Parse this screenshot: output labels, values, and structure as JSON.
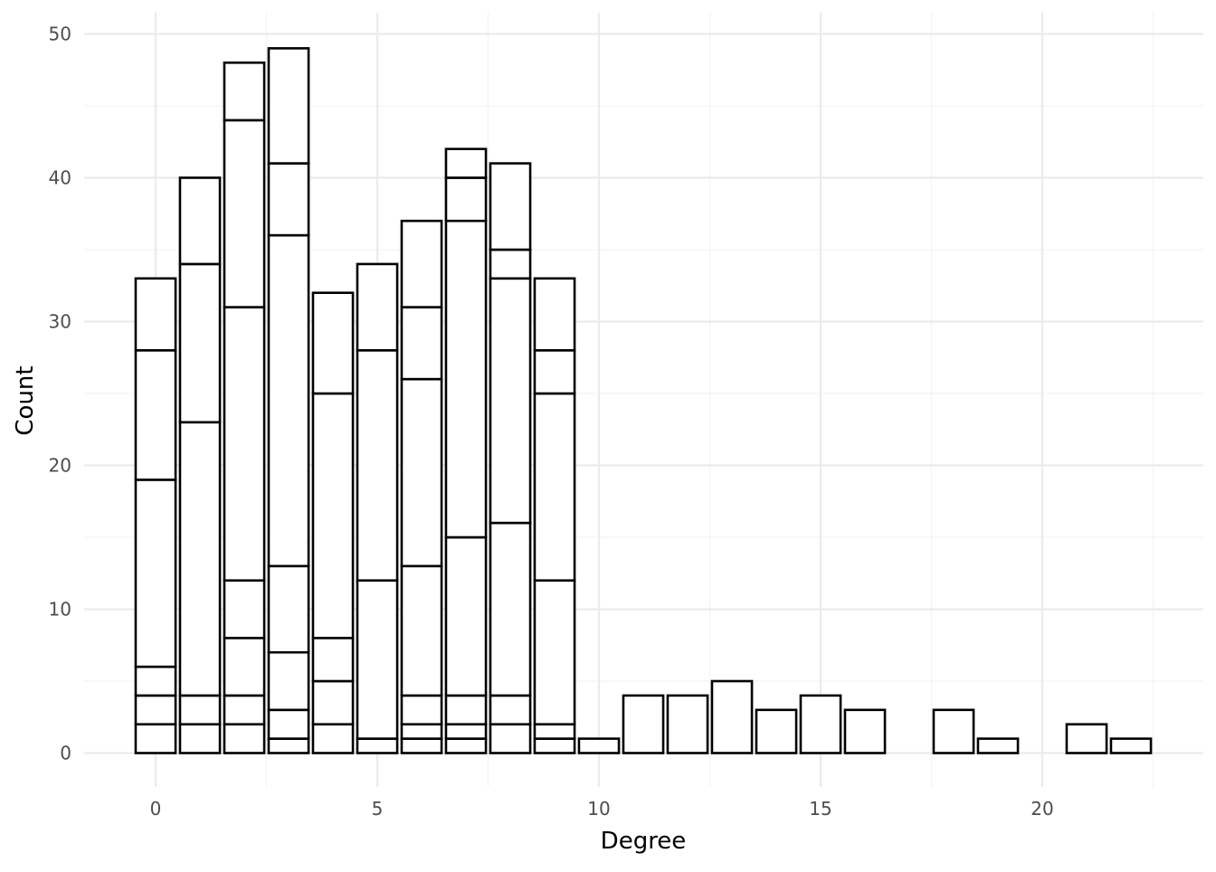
{
  "chart_data": {
    "type": "bar",
    "subtype": "stacked",
    "xlabel": "Degree",
    "ylabel": "Count",
    "xlim": [
      -1.5,
      23.5
    ],
    "ylim": [
      -2.5,
      51
    ],
    "x_ticks": [
      0,
      5,
      10,
      15,
      20
    ],
    "y_ticks": [
      0,
      10,
      20,
      30,
      40,
      50
    ],
    "grid": true,
    "fill_color": "#ffffff",
    "outline_color": "#000000",
    "gridline_color": "#ebebeb",
    "x": [
      0,
      1,
      2,
      3,
      4,
      5,
      6,
      7,
      8,
      9,
      10,
      11,
      12,
      13,
      14,
      15,
      16,
      18,
      19,
      21,
      22
    ],
    "stack_boundaries": [
      [
        2,
        4,
        6,
        19,
        28,
        33
      ],
      [
        2,
        4,
        23,
        34,
        40
      ],
      [
        2,
        4,
        8,
        12,
        31,
        44,
        48
      ],
      [
        1,
        3,
        7,
        13,
        36,
        41,
        49
      ],
      [
        2,
        5,
        8,
        25,
        32
      ],
      [
        1,
        12,
        28,
        34
      ],
      [
        1,
        2,
        4,
        13,
        26,
        31,
        37
      ],
      [
        1,
        2,
        4,
        15,
        37,
        40,
        42
      ],
      [
        2,
        4,
        16,
        33,
        35,
        41
      ],
      [
        1,
        2,
        12,
        25,
        28,
        33
      ],
      [
        1
      ],
      [
        4
      ],
      [
        4
      ],
      [
        5
      ],
      [
        3
      ],
      [
        4
      ],
      [
        3
      ],
      [
        3
      ],
      [
        1
      ],
      [
        2
      ],
      [
        1
      ]
    ],
    "totals": [
      33,
      40,
      48,
      49,
      32,
      34,
      37,
      42,
      41,
      33,
      1,
      4,
      4,
      5,
      3,
      4,
      3,
      3,
      1,
      2,
      1
    ]
  }
}
